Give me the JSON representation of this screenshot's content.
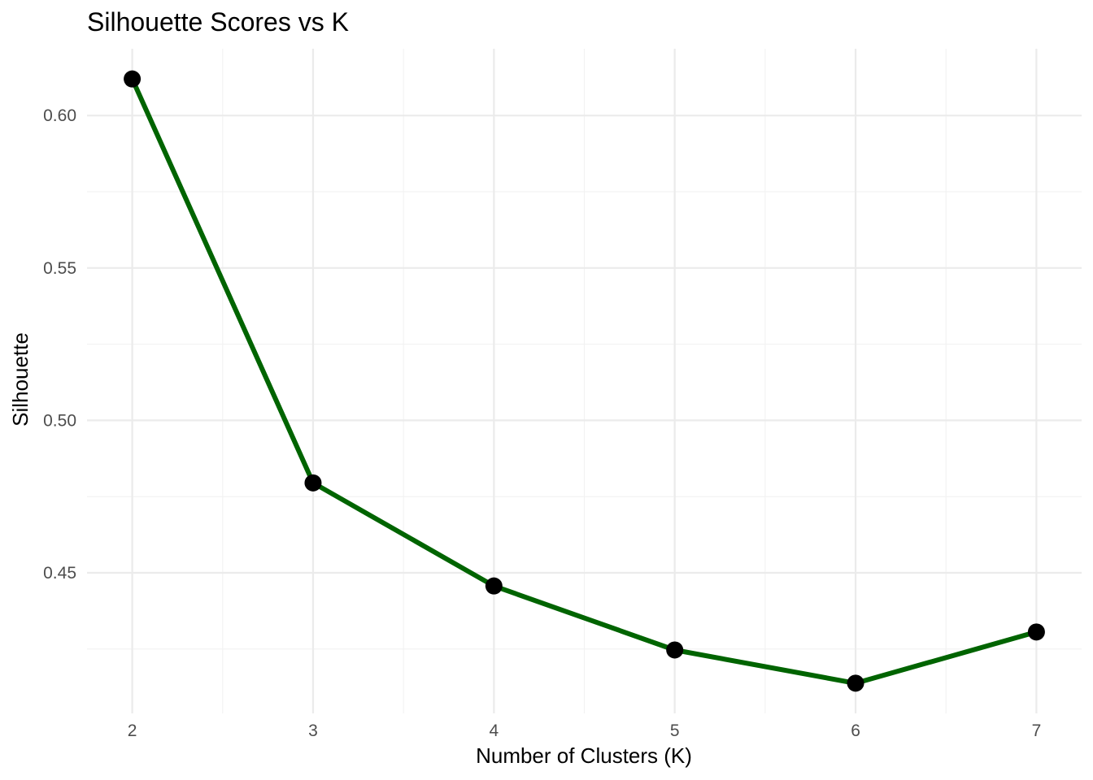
{
  "chart_data": {
    "type": "line",
    "title": "Silhouette Scores vs K",
    "xlabel": "Number of Clusters (K)",
    "ylabel": "Silhouette",
    "x": [
      2,
      3,
      4,
      5,
      6,
      7
    ],
    "series": [
      {
        "values": [
          0.612,
          0.4795,
          0.4457,
          0.4247,
          0.4138,
          0.4306
        ],
        "line_color": "#006400",
        "point_color": "#000000"
      }
    ],
    "x_ticks": [
      2,
      3,
      4,
      5,
      6,
      7
    ],
    "x_tick_labels": [
      "2",
      "3",
      "4",
      "5",
      "6",
      "7"
    ],
    "y_ticks": [
      0.45,
      0.5,
      0.55,
      0.6
    ],
    "y_tick_labels": [
      "0.45",
      "0.50",
      "0.55",
      "0.60"
    ],
    "xlim": [
      1.75,
      7.25
    ],
    "ylim": [
      0.4039,
      0.6219
    ],
    "grid": true,
    "legend": "none"
  }
}
